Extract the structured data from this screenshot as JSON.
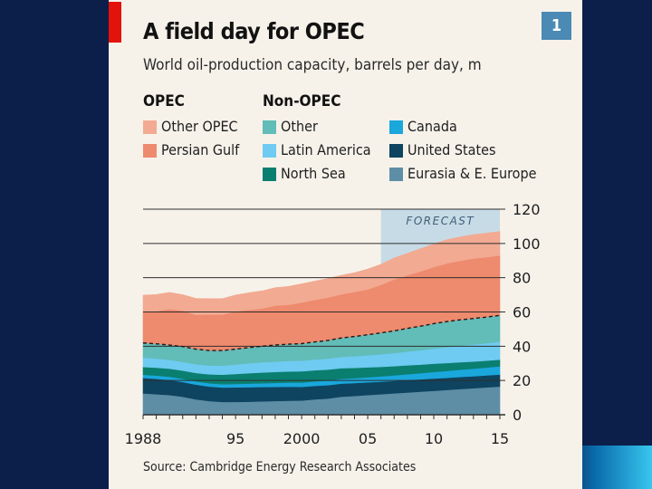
{
  "figure": {
    "chart_number": "1",
    "background": "#f6f2ea",
    "slide_background": "#0b1f4a",
    "source": "Source: Cambridge Energy Research Associates"
  },
  "legend": {
    "opec_heading": "OPEC",
    "non_opec_heading": "Non-OPEC"
  },
  "chart_data": {
    "type": "area",
    "stacked": true,
    "title": "A field day for OPEC",
    "subtitle": "World oil-production capacity, barrels per day, m",
    "x": [
      1988,
      1989,
      1990,
      1991,
      1992,
      1993,
      1994,
      1995,
      1996,
      1997,
      1998,
      1999,
      2000,
      2001,
      2002,
      2003,
      2004,
      2005,
      2006,
      2007,
      2008,
      2009,
      2010,
      2011,
      2012,
      2013,
      2014,
      2015
    ],
    "xticks": [
      1988,
      1995,
      2000,
      2005,
      2010,
      2015
    ],
    "xtick_labels": [
      "1988",
      "95",
      "2000",
      "05",
      "10",
      "15"
    ],
    "xlim": [
      1988,
      2015
    ],
    "ylim": [
      0,
      120
    ],
    "yticks": [
      0,
      20,
      40,
      60,
      80,
      100,
      120
    ],
    "ytick_labels": [
      "0",
      "20",
      "40",
      "60",
      "80",
      "100",
      "120"
    ],
    "y_axis_side": "right",
    "forecast": {
      "label": "FORECAST",
      "from": 2006,
      "to": 2015,
      "color": "#c7dbe6"
    },
    "series": [
      {
        "name": "Eurasia & E. Europe",
        "group": "Non-OPEC",
        "color": "#5d8ea6",
        "values": [
          12.5,
          12,
          11.5,
          10.5,
          9,
          8,
          7.5,
          7.5,
          7.6,
          7.8,
          8,
          8.2,
          8.3,
          9,
          9.5,
          10.5,
          11,
          11.5,
          12,
          12.5,
          13,
          13.5,
          14,
          14.5,
          15,
          15.5,
          16,
          16.5
        ]
      },
      {
        "name": "United States",
        "group": "Non-OPEC",
        "color": "#0e4460",
        "values": [
          9,
          9,
          8.8,
          8.6,
          8.6,
          8.5,
          8.4,
          8.5,
          8.5,
          8.4,
          8.3,
          8.2,
          8,
          7.9,
          7.8,
          7.7,
          7.5,
          7.4,
          7.3,
          7.3,
          7.3,
          7.2,
          7.2,
          7.1,
          7.1,
          7,
          7,
          7
        ]
      },
      {
        "name": "Canada",
        "group": "Non-OPEC",
        "color": "#1aa7dc",
        "values": [
          1.9,
          1.9,
          1.9,
          1.9,
          1.9,
          1.9,
          2,
          2,
          2.1,
          2.2,
          2.3,
          2.4,
          2.5,
          2.6,
          2.7,
          2.8,
          2.9,
          3,
          3.1,
          3.2,
          3.4,
          3.6,
          3.8,
          4,
          4.2,
          4.4,
          4.6,
          4.8
        ]
      },
      {
        "name": "North Sea",
        "group": "Non-OPEC",
        "color": "#0a7f70",
        "values": [
          4.5,
          4.6,
          4.7,
          4.8,
          4.9,
          5.2,
          5.5,
          5.8,
          6.1,
          6.3,
          6.4,
          6.5,
          6.6,
          6.5,
          6.4,
          6.2,
          6,
          5.8,
          5.6,
          5.4,
          5.2,
          5,
          4.8,
          4.6,
          4.4,
          4.2,
          4,
          3.9
        ]
      },
      {
        "name": "Latin America",
        "group": "Non-OPEC",
        "color": "#6fcbf1",
        "values": [
          5.5,
          5.3,
          5.1,
          5.1,
          5.1,
          5.2,
          5.3,
          5.5,
          5.7,
          5.9,
          6,
          6.1,
          6.2,
          6.3,
          6.4,
          6.6,
          6.8,
          7,
          7.3,
          7.6,
          8,
          8.4,
          8.8,
          9.2,
          9.6,
          9.9,
          10.2,
          10.5
        ]
      },
      {
        "name": "Other",
        "group": "Non-OPEC",
        "color": "#62bcb8",
        "values": [
          8.5,
          8.6,
          8.7,
          8.9,
          8.8,
          8.7,
          8.8,
          9,
          9.2,
          9.4,
          9.7,
          9.8,
          9.9,
          10.2,
          10.6,
          11,
          11.5,
          12,
          12.5,
          13,
          13.5,
          14,
          14.6,
          15,
          15.1,
          15.2,
          15.2,
          15.3
        ]
      },
      {
        "name": "Persian Gulf",
        "group": "OPEC",
        "color": "#ee8a6e",
        "values": [
          18,
          19,
          21,
          21,
          20,
          21,
          21,
          22,
          22,
          22,
          23,
          23,
          24,
          24.5,
          25,
          25.5,
          26,
          26.5,
          28,
          30,
          31,
          32,
          33,
          34,
          34.5,
          35,
          35,
          35
        ]
      },
      {
        "name": "Other OPEC",
        "group": "OPEC",
        "color": "#f2aa92",
        "values": [
          9.9,
          9.8,
          9.7,
          9.3,
          9.6,
          9.3,
          9.3,
          9.6,
          10,
          10.3,
          10.5,
          10.7,
          10.9,
          11,
          11.2,
          11.1,
          11.2,
          11.8,
          12,
          12.5,
          12.8,
          13.2,
          13.5,
          13.8,
          13.9,
          14,
          14,
          14
        ]
      }
    ]
  }
}
